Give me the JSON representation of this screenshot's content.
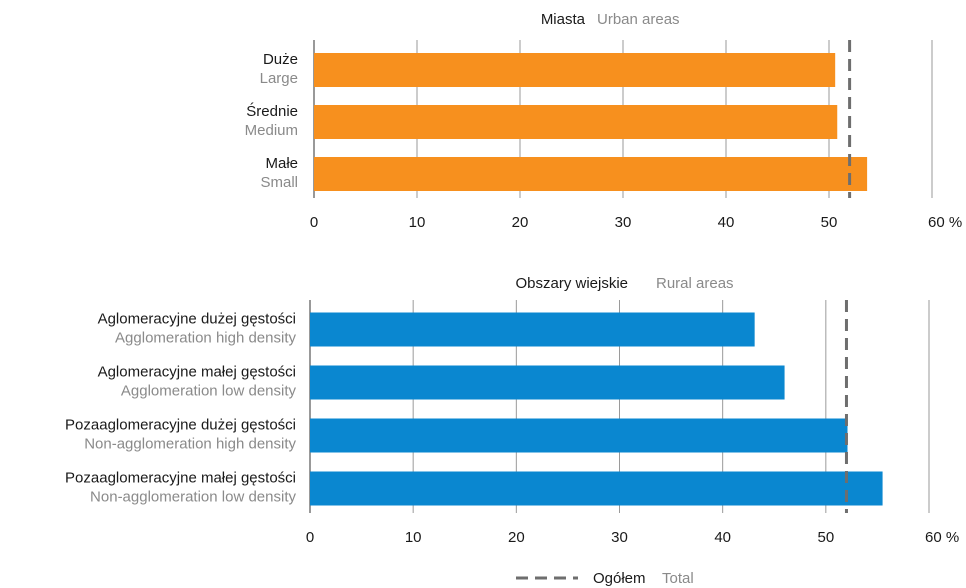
{
  "chart_data": [
    {
      "type": "bar",
      "orientation": "horizontal",
      "title": "Miasta",
      "subtitle": "Urban areas",
      "categories": [
        {
          "label": "Duże",
          "sublabel": "Large"
        },
        {
          "label": "Średnie",
          "sublabel": "Medium"
        },
        {
          "label": "Małe",
          "sublabel": "Small"
        }
      ],
      "values": [
        50.6,
        50.8,
        53.7
      ],
      "reference_value": 52.0,
      "xlim": [
        0,
        60
      ],
      "ticks": [
        "0",
        "10",
        "20",
        "30",
        "40",
        "50",
        "60 %"
      ],
      "tick_values": [
        0,
        10,
        20,
        30,
        40,
        50,
        60
      ],
      "grid": true,
      "color": "#f7901e"
    },
    {
      "type": "bar",
      "orientation": "horizontal",
      "title": "Obszary wiejskie",
      "subtitle": "Rural areas",
      "categories": [
        {
          "label": "Aglomeracyjne dużej gęstości",
          "sublabel": "Agglomeration high density"
        },
        {
          "label": "Aglomeracyjne małej gęstości",
          "sublabel": "Agglomeration low density"
        },
        {
          "label": "Pozaaglomeracyjne dużej gęstości",
          "sublabel": "Non-agglomeration high density"
        },
        {
          "label": "Pozaaglomeracyjne małej gęstości",
          "sublabel": "Non-agglomeration low density"
        }
      ],
      "values": [
        43.1,
        46.0,
        52.1,
        55.5
      ],
      "reference_value": 52.0,
      "xlim": [
        0,
        60
      ],
      "ticks": [
        "0",
        "10",
        "20",
        "30",
        "40",
        "50",
        "60 %"
      ],
      "tick_values": [
        0,
        10,
        20,
        30,
        40,
        50,
        60
      ],
      "grid": true,
      "color": "#0a87d0"
    }
  ],
  "legend": {
    "label": "Ogółem",
    "sublabel": "Total",
    "placement": "bottom-center"
  }
}
